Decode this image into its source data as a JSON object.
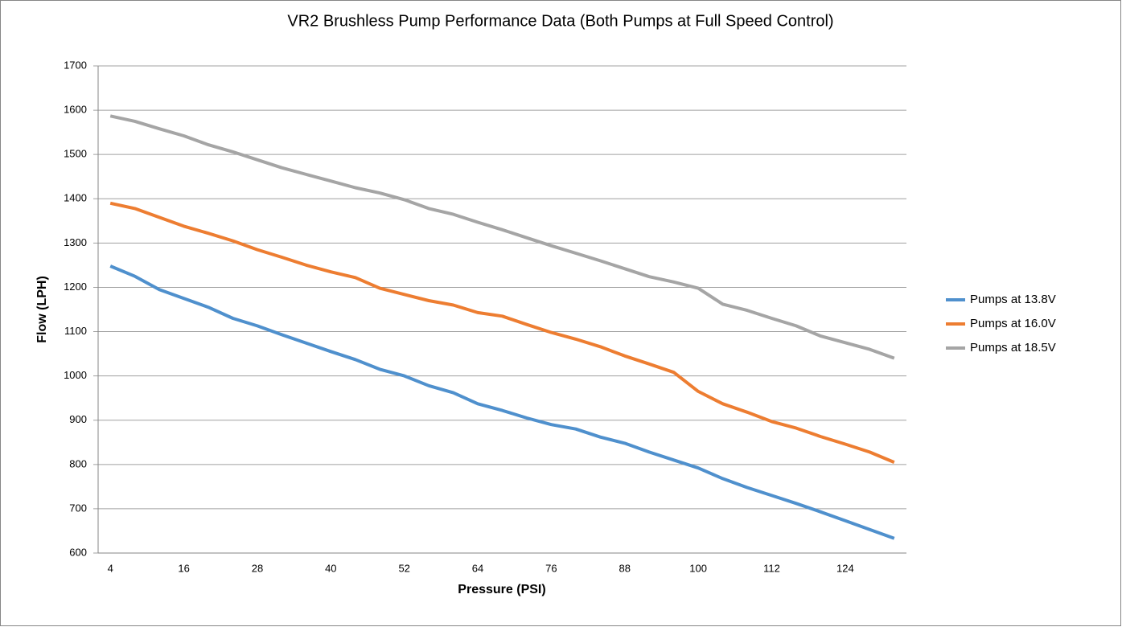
{
  "chart_data": {
    "type": "line",
    "title": "VR2 Brushless Pump Performance Data (Both Pumps at Full Speed Control)",
    "x_label": "Pressure (PSI)",
    "y_label": "Flow (LPH)",
    "categories": [
      4,
      null,
      null,
      16,
      null,
      null,
      28,
      null,
      null,
      40,
      null,
      null,
      52,
      null,
      null,
      64,
      null,
      null,
      76,
      null,
      null,
      88,
      null,
      null,
      100,
      null,
      null,
      112,
      null,
      null,
      124,
      null,
      null
    ],
    "series": [
      {
        "name": "Pumps at 13.8V",
        "color": "#4f90cd",
        "values": [
          1248,
          1225,
          1195,
          1175,
          1155,
          1130,
          1113,
          1093,
          1074,
          1055,
          1037,
          1015,
          1000,
          978,
          962,
          937,
          922,
          905,
          890,
          880,
          862,
          848,
          828,
          810,
          792,
          768,
          748,
          730,
          712,
          693,
          673,
          653,
          633
        ]
      },
      {
        "name": "Pumps at 16.0V",
        "color": "#ed7d31",
        "values": [
          1390,
          1378,
          1358,
          1338,
          1322,
          1305,
          1285,
          1268,
          1250,
          1235,
          1222,
          1198,
          1184,
          1170,
          1160,
          1143,
          1135,
          1116,
          1098,
          1083,
          1066,
          1045,
          1027,
          1008,
          965,
          937,
          918,
          897,
          882,
          863,
          846,
          828,
          805
        ]
      },
      {
        "name": "Pumps at 18.5V",
        "color": "#a5a5a5",
        "values": [
          1587,
          1575,
          1558,
          1542,
          1522,
          1506,
          1488,
          1470,
          1455,
          1440,
          1425,
          1413,
          1398,
          1378,
          1365,
          1347,
          1330,
          1312,
          1294,
          1277,
          1260,
          1242,
          1224,
          1212,
          1198,
          1162,
          1148,
          1130,
          1113,
          1090,
          1075,
          1060,
          1040
        ]
      }
    ],
    "ylim": [
      600,
      1700
    ],
    "yticks": [
      600,
      700,
      800,
      900,
      1000,
      1100,
      1200,
      1300,
      1400,
      1500,
      1600,
      1700
    ],
    "grid": true,
    "legend": "right"
  }
}
